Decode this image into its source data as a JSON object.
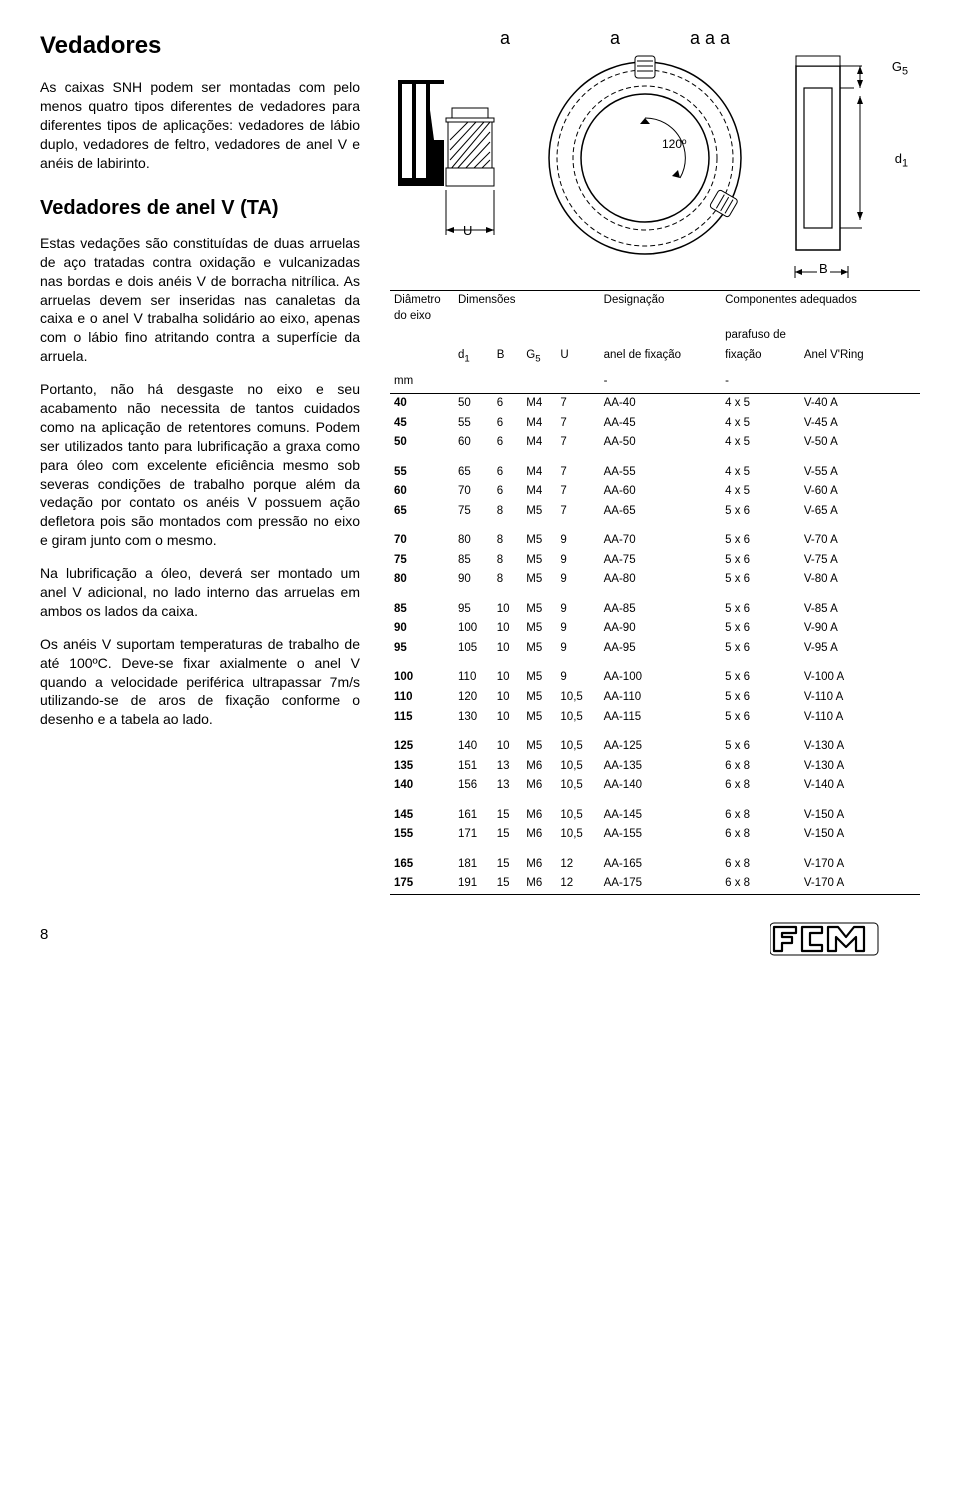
{
  "title": "Vedadores",
  "intro": "As caixas SNH podem ser montadas com pelo menos quatro tipos diferentes de vedadores para diferentes tipos de aplicações: vedadores de lábio duplo, vedadores de feltro, vedadores de anel V e anéis de labirinto.",
  "subtitle": "Vedadores de anel V (TA)",
  "para1": "Estas vedações são constituídas de duas arruelas de aço tratadas contra oxidação e vulcanizadas nas bordas e dois anéis V de borracha nitrílica. As arruelas devem ser inseridas nas canaletas da caixa e o anel V trabalha solidário ao eixo, apenas com o lábio fino atritando contra a superfície da arruela.",
  "para2": "Portanto, não há desgaste no eixo e seu acabamento não necessita de tantos cuidados como na aplicação de retentores comuns. Podem ser utilizados tanto para lubrificação a graxa como para óleo com excelente eficiência mesmo sob severas condições de trabalho porque além da vedação por contato os anéis V possuem ação defletora pois são montados com pressão no eixo e giram junto com o mesmo.",
  "para3": "Na lubrificação a óleo, deverá ser montado um anel V adicional, no lado interno das arruelas em ambos os lados da caixa.",
  "para4": "Os anéis V suportam temperaturas de trabalho de até 100ºC. Deve-se fixar axialmente o anel V quando a velocidade periférica ultrapassar 7m/s utilizando-se de aros de fixação conforme o desenho e a tabela ao lado.",
  "diag": {
    "a1": "a",
    "a2": "a",
    "aaa": "a a a",
    "angle": "120º",
    "G5": "G",
    "G5sub": "5",
    "d1": "d",
    "d1sub": "1",
    "U": "U",
    "B": "B"
  },
  "table": {
    "h_diam": "Diâmetro do eixo",
    "h_dim": "Dimensões",
    "h_desig": "Designação",
    "h_comp": "Componentes adequados",
    "h_paraf": "parafuso de",
    "h_d1": "d",
    "h_d1s": "1",
    "h_B": "B",
    "h_G5": "G",
    "h_G5s": "5",
    "h_U": "U",
    "h_anelfix": "anel de fixação",
    "h_fix": "fixação",
    "h_vring": "Anel V'Ring",
    "h_mm": "mm",
    "rows": [
      [
        "40",
        "50",
        "6",
        "M4",
        "7",
        "AA-40",
        "4 x 5",
        "V-40 A"
      ],
      [
        "45",
        "55",
        "6",
        "M4",
        "7",
        "AA-45",
        "4 x 5",
        "V-45 A"
      ],
      [
        "50",
        "60",
        "6",
        "M4",
        "7",
        "AA-50",
        "4 x 5",
        "V-50 A"
      ],
      [],
      [
        "55",
        "65",
        "6",
        "M4",
        "7",
        "AA-55",
        "4 x 5",
        "V-55 A"
      ],
      [
        "60",
        "70",
        "6",
        "M4",
        "7",
        "AA-60",
        "4 x 5",
        "V-60 A"
      ],
      [
        "65",
        "75",
        "8",
        "M5",
        "7",
        "AA-65",
        "5 x 6",
        "V-65 A"
      ],
      [],
      [
        "70",
        "80",
        "8",
        "M5",
        "9",
        "AA-70",
        "5 x 6",
        "V-70 A"
      ],
      [
        "75",
        "85",
        "8",
        "M5",
        "9",
        "AA-75",
        "5 x 6",
        "V-75 A"
      ],
      [
        "80",
        "90",
        "8",
        "M5",
        "9",
        "AA-80",
        "5 x 6",
        "V-80 A"
      ],
      [],
      [
        "85",
        "95",
        "10",
        "M5",
        "9",
        "AA-85",
        "5 x 6",
        "V-85 A"
      ],
      [
        "90",
        "100",
        "10",
        "M5",
        "9",
        "AA-90",
        "5 x 6",
        "V-90 A"
      ],
      [
        "95",
        "105",
        "10",
        "M5",
        "9",
        "AA-95",
        "5 x 6",
        "V-95 A"
      ],
      [],
      [
        "100",
        "110",
        "10",
        "M5",
        "9",
        "AA-100",
        "5 x 6",
        "V-100 A"
      ],
      [
        "110",
        "120",
        "10",
        "M5",
        "10,5",
        "AA-110",
        "5 x 6",
        "V-110 A"
      ],
      [
        "115",
        "130",
        "10",
        "M5",
        "10,5",
        "AA-115",
        "5 x 6",
        "V-110 A"
      ],
      [],
      [
        "125",
        "140",
        "10",
        "M5",
        "10,5",
        "AA-125",
        "5 x 6",
        "V-130 A"
      ],
      [
        "135",
        "151",
        "13",
        "M6",
        "10,5",
        "AA-135",
        "6 x 8",
        "V-130 A"
      ],
      [
        "140",
        "156",
        "13",
        "M6",
        "10,5",
        "AA-140",
        "6 x 8",
        "V-140 A"
      ],
      [],
      [
        "145",
        "161",
        "15",
        "M6",
        "10,5",
        "AA-145",
        "6 x 8",
        "V-150 A"
      ],
      [
        "155",
        "171",
        "15",
        "M6",
        "10,5",
        "AA-155",
        "6 x 8",
        "V-150 A"
      ],
      [],
      [
        "165",
        "181",
        "15",
        "M6",
        "12",
        "AA-165",
        "6 x 8",
        "V-170 A"
      ],
      [
        "175",
        "191",
        "15",
        "M6",
        "12",
        "AA-175",
        "6 x 8",
        "V-170 A"
      ]
    ]
  },
  "page_num": "8",
  "logo_text": "FCM"
}
